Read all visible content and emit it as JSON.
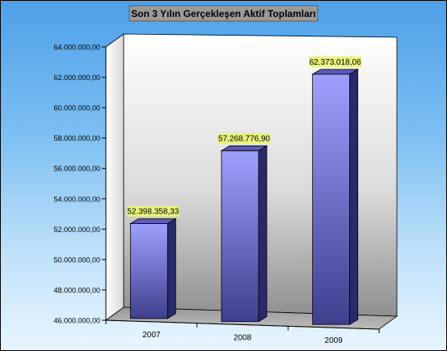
{
  "chart_data": {
    "type": "bar",
    "title": "Son 3 Yılın Gerçekleşen Aktif Toplamları",
    "categories": [
      "2007",
      "2008",
      "2009"
    ],
    "values": [
      52398358.33,
      57268776.9,
      62373018.06
    ],
    "value_labels": [
      "52.398.358,33",
      "57.268.776,90",
      "62.373.018,06"
    ],
    "ylim": [
      46000000,
      64000000
    ],
    "yticks": [
      46000000,
      48000000,
      50000000,
      52000000,
      54000000,
      56000000,
      58000000,
      60000000,
      62000000,
      64000000
    ],
    "ytick_labels": [
      "46.000.000,00",
      "48.000.000,00",
      "50.000.000,00",
      "52.000.000,00",
      "54.000.000,00",
      "56.000.000,00",
      "58.000.000,00",
      "60.000.000,00",
      "62.000.000,00",
      "64.000.000,00"
    ],
    "xlabel": "",
    "ylabel": "",
    "grid": false,
    "legend": "none",
    "colors": {
      "bar_front_top": "#9fa0ff",
      "bar_front_bottom": "#3e3f8c",
      "bar_side": "#2a2a6a",
      "bar_top": "#5a5ab8",
      "value_label_bg": "#e9f27c",
      "title_bg": "#9a9a9a"
    }
  }
}
